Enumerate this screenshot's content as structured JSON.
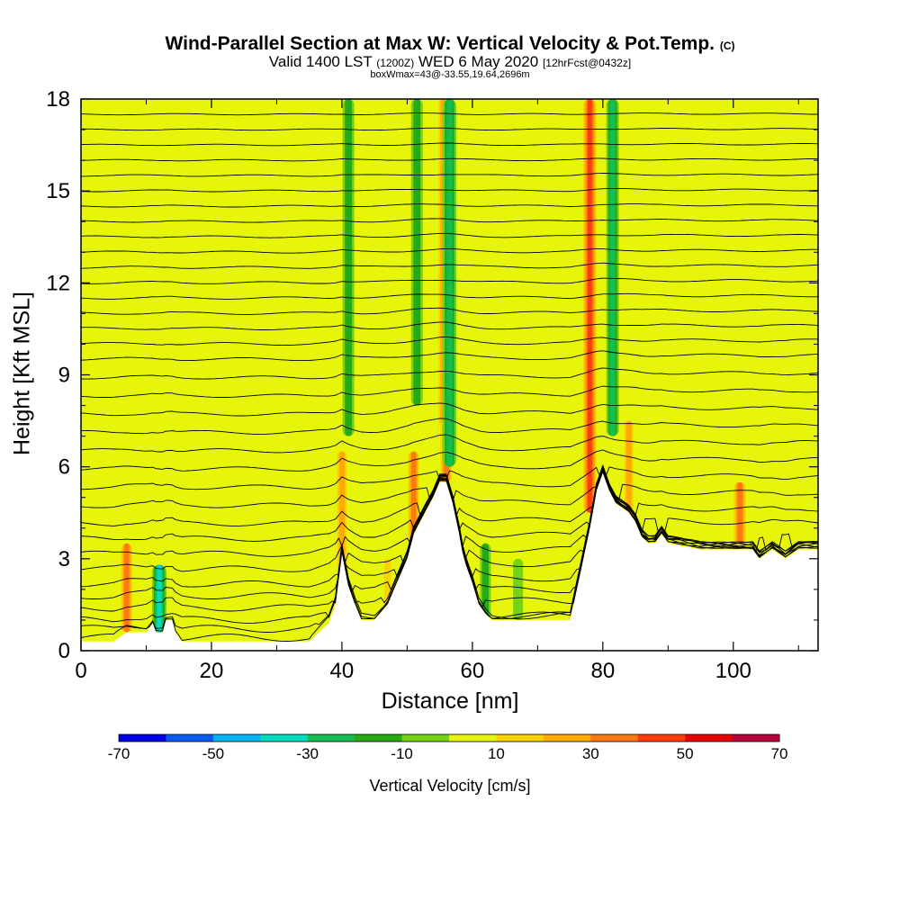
{
  "title": "Wind-Parallel Section at Max W: Vertical Velocity & Pot.Temp.",
  "title_mark": "(C)",
  "subtitle_main": "Valid 1400 LST",
  "subtitle_z": "(1200Z)",
  "subtitle_date": "WED 6 May 2020",
  "subtitle_fcst": "[12hrFcst@0432z]",
  "subtitle_note": "boxWmax=43@-33.55,19.64,2696m",
  "chart_data": {
    "type": "heatmap",
    "xlabel": "Distance [nm]",
    "ylabel": "Height [Kft MSL]",
    "xlim": [
      0,
      113
    ],
    "ylim": [
      0,
      18
    ],
    "x_ticks": [
      "0",
      "20",
      "40",
      "60",
      "80",
      "100"
    ],
    "x_tick_values": [
      0,
      20,
      40,
      60,
      80,
      100
    ],
    "y_ticks": [
      "0",
      "3",
      "6",
      "9",
      "12",
      "15",
      "18"
    ],
    "y_tick_values": [
      0,
      3,
      6,
      9,
      12,
      15,
      18
    ],
    "background_field": 0,
    "colorbar": {
      "label": "Vertical Velocity [cm/s]",
      "bounds": [
        -70,
        -60,
        -50,
        -40,
        -30,
        -20,
        -10,
        0,
        10,
        20,
        30,
        40,
        50,
        60,
        70
      ],
      "tick_labels": [
        "-70",
        "-50",
        "-30",
        "-10",
        "10",
        "30",
        "50",
        "70"
      ],
      "tick_values": [
        -70,
        -50,
        -30,
        -10,
        10,
        30,
        50,
        70
      ],
      "colors": [
        "#0000e6",
        "#0a5af0",
        "#00b4f0",
        "#00dcbe",
        "#14be50",
        "#28aa14",
        "#78d214",
        "#e6f50a",
        "#fad200",
        "#ffaa00",
        "#ff7814",
        "#ff3c0a",
        "#e60000",
        "#b4003c"
      ]
    },
    "terrain": {
      "x": [
        0,
        2,
        5,
        7,
        9,
        10,
        11,
        11.5,
        12.5,
        13,
        14,
        14.5,
        15.5,
        20,
        25,
        30,
        35,
        38,
        39,
        40,
        41,
        42,
        43,
        45,
        47,
        49,
        50,
        51,
        52,
        53,
        54,
        55,
        56,
        57,
        58,
        58.5,
        59,
        60,
        61,
        62,
        63,
        65,
        70,
        75,
        76,
        77,
        78,
        79,
        80,
        81,
        82,
        84,
        85,
        86,
        87,
        88,
        89,
        90,
        95,
        100,
        103,
        104,
        106,
        108,
        110,
        113
      ],
      "kft": [
        0.3,
        0.3,
        0.3,
        0.6,
        0.6,
        0.6,
        0.9,
        0.6,
        0.6,
        1.0,
        1.0,
        0.6,
        0.3,
        0.3,
        0.3,
        0.3,
        0.3,
        0.9,
        1.5,
        3.2,
        2.1,
        1.5,
        1.0,
        1.0,
        1.5,
        2.5,
        3.0,
        3.8,
        4.2,
        4.6,
        5.0,
        5.5,
        5.5,
        4.8,
        3.8,
        3.2,
        2.8,
        2.2,
        1.5,
        1.2,
        1.0,
        1.0,
        1.0,
        1.0,
        2.0,
        3.0,
        4.0,
        5.2,
        5.8,
        5.2,
        4.8,
        4.5,
        4.2,
        3.7,
        3.5,
        3.5,
        3.8,
        3.5,
        3.3,
        3.3,
        3.3,
        3.0,
        3.3,
        3.0,
        3.3,
        3.3
      ]
    },
    "updrafts": [
      {
        "x": 7,
        "kft_bottom": 0.6,
        "kft_top": 3.5,
        "w": 40
      },
      {
        "x": 40,
        "kft_bottom": 2.5,
        "kft_top": 6.5,
        "w": 35
      },
      {
        "x": 47,
        "kft_bottom": 1.0,
        "kft_top": 3.0,
        "w": 20
      },
      {
        "x": 51,
        "kft_bottom": 3.5,
        "kft_top": 6.5,
        "w": 40
      },
      {
        "x": 55.5,
        "kft_bottom": 5.5,
        "kft_top": 18,
        "w": 30
      },
      {
        "x": 56,
        "kft_bottom": 5.5,
        "kft_top": 7.5,
        "w": 45
      },
      {
        "x": 59,
        "kft_bottom": 3.0,
        "kft_top": 18,
        "w": 10
      },
      {
        "x": 78,
        "kft_bottom": 4.5,
        "kft_top": 18,
        "w": 50
      },
      {
        "x": 84,
        "kft_bottom": 4.5,
        "kft_top": 7.5,
        "w": 30
      },
      {
        "x": 101,
        "kft_bottom": 3.5,
        "kft_top": 5.5,
        "w": 45
      },
      {
        "x": 110,
        "kft_bottom": 3.5,
        "kft_top": 6.5,
        "w": 15
      }
    ],
    "downdrafts": [
      {
        "x": 12,
        "kft_bottom": 0.6,
        "kft_top": 2.8,
        "w": -40
      },
      {
        "x": 41,
        "kft_bottom": 7.0,
        "kft_top": 18,
        "w": -25
      },
      {
        "x": 51.5,
        "kft_bottom": 8.0,
        "kft_top": 18,
        "w": -25
      },
      {
        "x": 56.5,
        "kft_bottom": 6.0,
        "kft_top": 18,
        "w": -35
      },
      {
        "x": 62,
        "kft_bottom": 1.0,
        "kft_top": 3.5,
        "w": -20
      },
      {
        "x": 67,
        "kft_bottom": 1.0,
        "kft_top": 3.0,
        "w": -15
      },
      {
        "x": 81.5,
        "kft_bottom": 7.0,
        "kft_top": 18,
        "w": -30
      }
    ],
    "theta_contour_levels_kft": [
      0.3,
      0.6,
      0.9,
      1.3,
      1.7,
      2.1,
      2.6,
      3.1,
      3.6,
      4.1,
      4.7,
      5.3,
      5.9,
      6.5,
      7.1,
      7.7,
      8.3,
      8.9,
      9.5,
      10.0,
      10.5,
      11.0,
      11.5,
      12.0,
      12.5,
      13.0,
      13.5,
      14.0,
      14.5,
      15.0,
      15.5,
      16.0,
      16.5,
      17.0,
      17.5
    ]
  }
}
